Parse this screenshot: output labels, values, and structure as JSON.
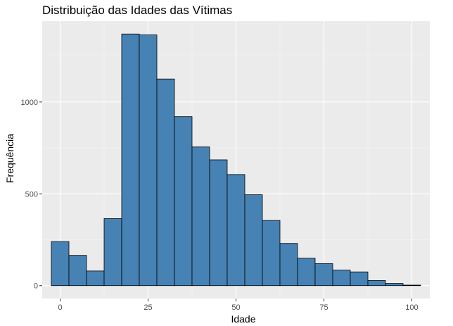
{
  "chart_data": {
    "type": "bar",
    "title": "Distribuição das Idades das Vítimas",
    "xlabel": "Idade",
    "ylabel": "Frequência",
    "bin_width": 5,
    "bins": [
      {
        "x_start": -2.5,
        "x_end": 2.5,
        "value": 240
      },
      {
        "x_start": 2.5,
        "x_end": 7.5,
        "value": 165
      },
      {
        "x_start": 7.5,
        "x_end": 12.5,
        "value": 80
      },
      {
        "x_start": 12.5,
        "x_end": 17.5,
        "value": 365
      },
      {
        "x_start": 17.5,
        "x_end": 22.5,
        "value": 1370
      },
      {
        "x_start": 22.5,
        "x_end": 27.5,
        "value": 1365
      },
      {
        "x_start": 27.5,
        "x_end": 32.5,
        "value": 1125
      },
      {
        "x_start": 32.5,
        "x_end": 37.5,
        "value": 920
      },
      {
        "x_start": 37.5,
        "x_end": 42.5,
        "value": 755
      },
      {
        "x_start": 42.5,
        "x_end": 47.5,
        "value": 685
      },
      {
        "x_start": 47.5,
        "x_end": 52.5,
        "value": 605
      },
      {
        "x_start": 52.5,
        "x_end": 57.5,
        "value": 495
      },
      {
        "x_start": 57.5,
        "x_end": 62.5,
        "value": 355
      },
      {
        "x_start": 62.5,
        "x_end": 67.5,
        "value": 230
      },
      {
        "x_start": 67.5,
        "x_end": 72.5,
        "value": 150
      },
      {
        "x_start": 72.5,
        "x_end": 77.5,
        "value": 120
      },
      {
        "x_start": 77.5,
        "x_end": 82.5,
        "value": 85
      },
      {
        "x_start": 82.5,
        "x_end": 87.5,
        "value": 75
      },
      {
        "x_start": 87.5,
        "x_end": 92.5,
        "value": 28
      },
      {
        "x_start": 92.5,
        "x_end": 97.5,
        "value": 12
      },
      {
        "x_start": 97.5,
        "x_end": 102.5,
        "value": 3
      }
    ],
    "xlim": [
      -5.1,
      105.1
    ],
    "ylim": [
      -70,
      1440
    ],
    "x_ticks": [
      0,
      25,
      50,
      75,
      100
    ],
    "x_tick_labels": [
      "0",
      "25",
      "50",
      "75",
      "100"
    ],
    "y_ticks": [
      0,
      500,
      1000
    ],
    "y_tick_labels": [
      "0",
      "500",
      "1000"
    ],
    "grid": true,
    "legend": "none",
    "colors": {
      "bar_fill": "#4682b4",
      "bar_outline": "#000000",
      "panel_background": "#ebebeb",
      "grid_major": "#ffffff",
      "grid_minor": "#f5f5f5",
      "tick_label": "#4d4d4d"
    }
  }
}
